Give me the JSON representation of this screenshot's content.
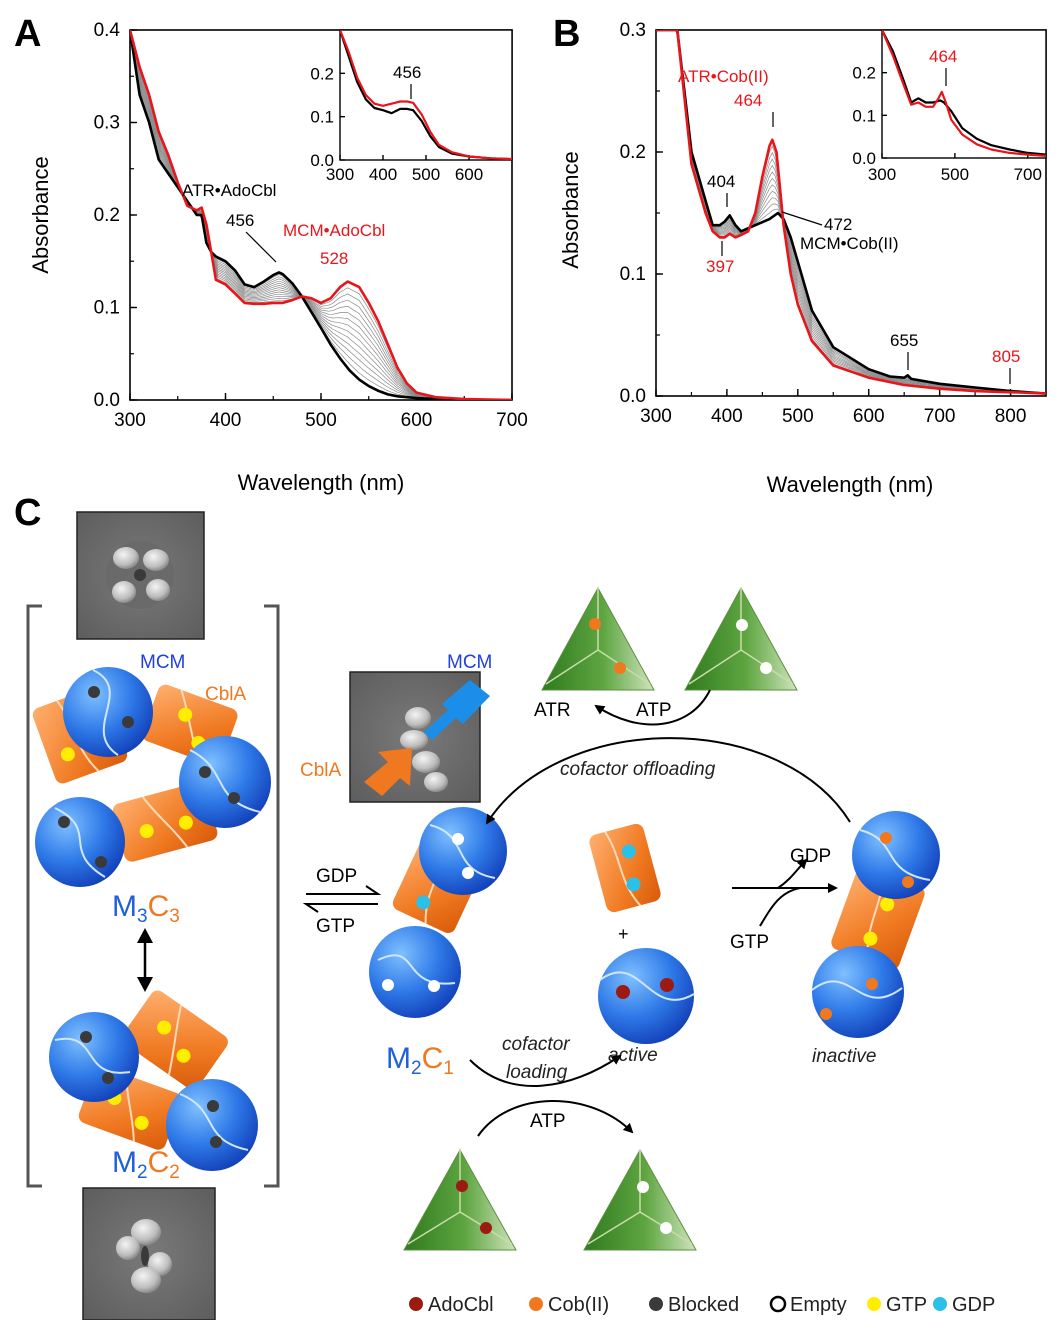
{
  "panels": {
    "A": "A",
    "B": "B",
    "C": "C"
  },
  "colors": {
    "red": "#e8161b",
    "black": "#000000",
    "gray": "#8a8a8a",
    "blue": "#2060d8",
    "orange": "#f07820",
    "green": "#3c8a2a",
    "dark_red": "#9b1b12",
    "cyan": "#2bc0e8",
    "yellow": "#ffee00",
    "dark_gray": "#3a3a3a"
  },
  "chart_data": [
    {
      "type": "line",
      "panel": "A",
      "xlabel": "Wavelength (nm)",
      "ylabel": "Absorbance",
      "xlim": [
        300,
        700
      ],
      "ylim": [
        0.0,
        0.4
      ],
      "xticks": [
        "300",
        "400",
        "500",
        "600",
        "700"
      ],
      "yticks": [
        "0.0",
        "0.1",
        "0.2",
        "0.3",
        "0.4"
      ],
      "series": [
        {
          "name": "ATR•AdoCbl",
          "color": "#000000",
          "x": [
            300,
            310,
            320,
            330,
            340,
            350,
            360,
            370,
            375,
            380,
            385,
            390,
            400,
            410,
            420,
            430,
            440,
            450,
            456,
            460,
            470,
            480,
            490,
            500,
            510,
            520,
            530,
            540,
            550,
            560,
            570,
            580,
            590,
            600,
            620,
            650,
            700
          ],
          "y": [
            0.4,
            0.33,
            0.3,
            0.26,
            0.245,
            0.23,
            0.215,
            0.2,
            0.2,
            0.17,
            0.16,
            0.155,
            0.15,
            0.14,
            0.125,
            0.122,
            0.128,
            0.135,
            0.138,
            0.136,
            0.126,
            0.112,
            0.095,
            0.078,
            0.06,
            0.045,
            0.032,
            0.022,
            0.015,
            0.01,
            0.006,
            0.004,
            0.003,
            0.002,
            0.001,
            0.0,
            0.0
          ]
        },
        {
          "name": "MCM•AdoCbl",
          "color": "#e8161b",
          "x": [
            300,
            310,
            320,
            330,
            340,
            350,
            360,
            370,
            375,
            380,
            385,
            390,
            400,
            410,
            420,
            430,
            440,
            450,
            460,
            470,
            480,
            490,
            500,
            510,
            520,
            528,
            540,
            550,
            560,
            570,
            580,
            590,
            600,
            620,
            650,
            700
          ],
          "y": [
            0.4,
            0.36,
            0.33,
            0.29,
            0.265,
            0.235,
            0.21,
            0.205,
            0.208,
            0.19,
            0.16,
            0.13,
            0.125,
            0.115,
            0.105,
            0.104,
            0.104,
            0.105,
            0.105,
            0.108,
            0.112,
            0.11,
            0.105,
            0.11,
            0.122,
            0.128,
            0.122,
            0.105,
            0.085,
            0.06,
            0.035,
            0.018,
            0.008,
            0.003,
            0.001,
            0.0
          ]
        }
      ],
      "inset": {
        "xlim": [
          300,
          700
        ],
        "ylim": [
          0.0,
          0.3
        ],
        "xticks": [
          "300",
          "400",
          "500",
          "600"
        ],
        "yticks": [
          "0.0",
          "0.1",
          "0.2"
        ],
        "series": [
          {
            "name": "black",
            "color": "#000000",
            "x": [
              300,
              320,
              340,
              360,
              380,
              400,
              420,
              440,
              456,
              470,
              490,
              510,
              530,
              560,
              600,
              650,
              700
            ],
            "y": [
              0.3,
              0.24,
              0.18,
              0.14,
              0.12,
              0.115,
              0.108,
              0.118,
              0.118,
              0.115,
              0.09,
              0.055,
              0.03,
              0.015,
              0.008,
              0.004,
              0.002
            ]
          },
          {
            "name": "red",
            "color": "#e8161b",
            "x": [
              300,
              320,
              340,
              360,
              380,
              400,
              420,
              440,
              456,
              470,
              490,
              510,
              530,
              560,
              600,
              650,
              700
            ],
            "y": [
              0.3,
              0.25,
              0.19,
              0.15,
              0.13,
              0.125,
              0.13,
              0.135,
              0.135,
              0.132,
              0.105,
              0.065,
              0.035,
              0.018,
              0.008,
              0.004,
              0.002
            ]
          }
        ],
        "annotation": "456"
      },
      "annotations": {
        "atr_label": "ATR•AdoCbl",
        "atr_peak": "456",
        "mcm_label": "MCM•AdoCbl",
        "mcm_peak": "528"
      }
    },
    {
      "type": "line",
      "panel": "B",
      "xlabel": "Wavelength (nm)",
      "ylabel": "Absorbance",
      "xlim": [
        300,
        850
      ],
      "ylim": [
        0.0,
        0.3
      ],
      "xticks": [
        "300",
        "400",
        "500",
        "600",
        "700",
        "800"
      ],
      "yticks": [
        "0.0",
        "0.1",
        "0.2",
        "0.3"
      ],
      "series": [
        {
          "name": "MCM•Cob(II)",
          "color": "#000000",
          "x": [
            300,
            330,
            350,
            370,
            380,
            390,
            397,
            404,
            412,
            420,
            440,
            460,
            472,
            480,
            490,
            500,
            520,
            550,
            600,
            630,
            650,
            655,
            660,
            700,
            750,
            800,
            850
          ],
          "y": [
            0.3,
            0.3,
            0.2,
            0.16,
            0.14,
            0.14,
            0.143,
            0.148,
            0.14,
            0.135,
            0.14,
            0.145,
            0.15,
            0.145,
            0.13,
            0.11,
            0.07,
            0.04,
            0.022,
            0.016,
            0.015,
            0.017,
            0.014,
            0.01,
            0.007,
            0.004,
            0.002
          ]
        },
        {
          "name": "ATR•Cob(II)",
          "color": "#e8161b",
          "x": [
            300,
            330,
            350,
            370,
            380,
            390,
            397,
            404,
            412,
            420,
            430,
            440,
            450,
            460,
            464,
            470,
            480,
            490,
            500,
            520,
            550,
            600,
            650,
            700,
            750,
            800,
            805,
            850
          ],
          "y": [
            0.3,
            0.3,
            0.19,
            0.15,
            0.135,
            0.13,
            0.13,
            0.133,
            0.13,
            0.132,
            0.135,
            0.15,
            0.18,
            0.205,
            0.21,
            0.2,
            0.14,
            0.1,
            0.075,
            0.045,
            0.025,
            0.015,
            0.009,
            0.006,
            0.004,
            0.003,
            0.003,
            0.002
          ]
        }
      ],
      "inset": {
        "xlim": [
          300,
          750
        ],
        "ylim": [
          0.0,
          0.3
        ],
        "xticks": [
          "300",
          "500",
          "700"
        ],
        "yticks": [
          "0.0",
          "0.1",
          "0.2"
        ],
        "series": [
          {
            "name": "black",
            "color": "#000000",
            "x": [
              300,
              330,
              360,
              380,
              400,
              420,
              440,
              460,
              470,
              490,
              520,
              560,
              600,
              650,
              700,
              750
            ],
            "y": [
              0.3,
              0.25,
              0.18,
              0.13,
              0.14,
              0.13,
              0.13,
              0.135,
              0.13,
              0.11,
              0.07,
              0.045,
              0.03,
              0.02,
              0.012,
              0.008
            ]
          },
          {
            "name": "red",
            "color": "#e8161b",
            "x": [
              300,
              330,
              360,
              380,
              400,
              420,
              440,
              455,
              464,
              475,
              490,
              520,
              560,
              600,
              650,
              700,
              750
            ],
            "y": [
              0.3,
              0.24,
              0.17,
              0.125,
              0.13,
              0.12,
              0.12,
              0.14,
              0.155,
              0.13,
              0.09,
              0.055,
              0.032,
              0.02,
              0.012,
              0.008,
              0.005
            ]
          }
        ],
        "annotation": "464"
      },
      "annotations": {
        "atr_label": "ATR•Cob(II)",
        "atr_peak": "464",
        "peak_404": "404",
        "peak_472": "472",
        "mcm_label": "MCM•Cob(II)",
        "peak_397": "397",
        "peak_655": "655",
        "peak_805": "805"
      }
    }
  ],
  "panel_c": {
    "mcm_label": "MCM",
    "cbla_label": "CblA",
    "m3c3": {
      "m": "M",
      "m_sub": "3",
      "c": "C",
      "c_sub": "3"
    },
    "m2c2": {
      "m": "M",
      "m_sub": "2",
      "c": "C",
      "c_sub": "2"
    },
    "m2c1": {
      "m": "M",
      "m_sub": "2",
      "c": "C",
      "c_sub": "1"
    },
    "em_mcm": "MCM",
    "em_cbla": "CblA",
    "gdp": "GDP",
    "gtp": "GTP",
    "atr": "ATR",
    "atp_top": "ATP",
    "cofactor_offloading": "cofactor offloading",
    "cofactor_loading_1": "cofactor",
    "cofactor_loading_2": "loading",
    "atp_bottom": "ATP",
    "active": "active",
    "inactive": "inactive",
    "plus": "+",
    "gdp_right": "GDP",
    "gtp_right": "GTP"
  },
  "legend": [
    {
      "label": "AdoCbl",
      "color": "#9b1b12"
    },
    {
      "label": "Cob(II)",
      "color": "#f07820"
    },
    {
      "label": "Blocked",
      "color": "#3a3a3a"
    },
    {
      "label": "Empty",
      "color": "none"
    },
    {
      "label": "GTP",
      "color": "#ffee00"
    },
    {
      "label": "GDP",
      "color": "#2bc0e8"
    }
  ]
}
